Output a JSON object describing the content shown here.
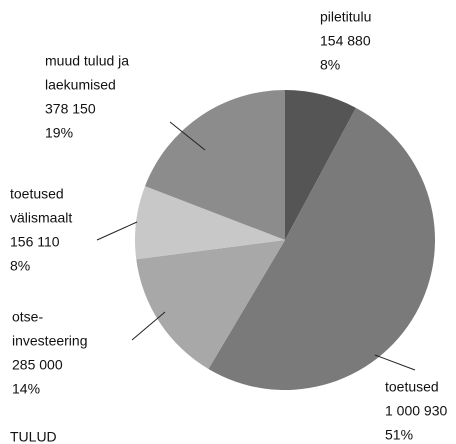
{
  "chart_data": {
    "type": "pie",
    "title": "TULUD",
    "categories": [
      [
        "piletitulu"
      ],
      [
        "toetused"
      ],
      [
        "otse-",
        "investeering"
      ],
      [
        "toetused",
        "välismaalt"
      ],
      [
        "muud tulud ja",
        "laekumised"
      ]
    ],
    "values": [
      154880,
      1000930,
      285000,
      156110,
      378150
    ],
    "value_labels": [
      "154 880",
      "1 000 930",
      "285 000",
      "156 110",
      "378 150"
    ],
    "percent_labels": [
      "8%",
      "51%",
      "14%",
      "8%",
      "19%"
    ],
    "colors": [
      "#555555",
      "#7a7a7a",
      "#a8a8a8",
      "#c8c8c8",
      "#8c8c8c"
    ]
  }
}
